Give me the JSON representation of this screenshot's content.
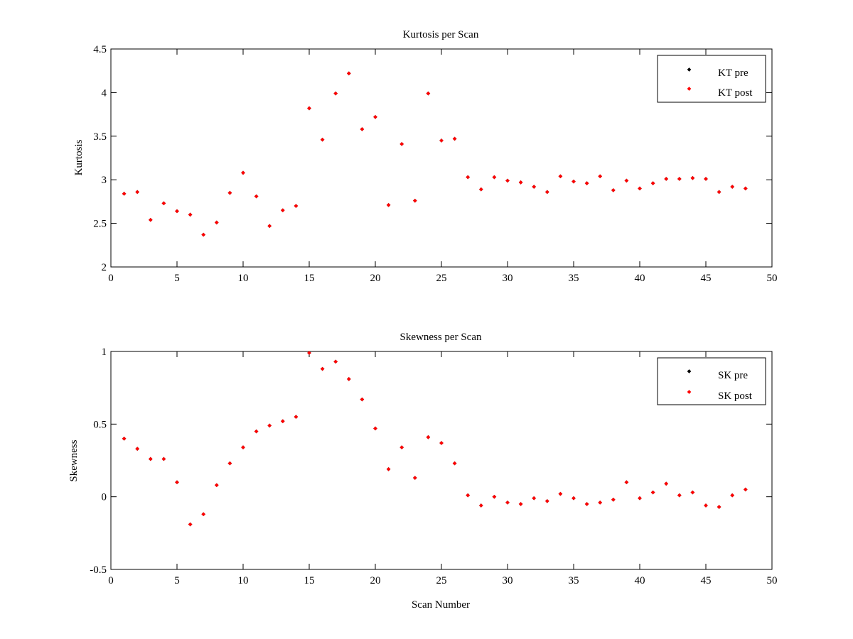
{
  "colors": {
    "pre": "#000000",
    "post": "#ff0000",
    "axes": "#000000",
    "background": "#ffffff"
  },
  "chart_data": [
    {
      "type": "scatter",
      "title": "Kurtosis per Scan",
      "xlabel": "",
      "ylabel": "Kurtosis",
      "xlim": [
        0,
        50
      ],
      "ylim": [
        2,
        4.5
      ],
      "xticks": [
        0,
        5,
        10,
        15,
        20,
        25,
        30,
        35,
        40,
        45,
        50
      ],
      "yticks": [
        2,
        2.5,
        3,
        3.5,
        4,
        4.5
      ],
      "grid": false,
      "legend_position": "top-right",
      "x": [
        1,
        2,
        3,
        4,
        5,
        6,
        7,
        8,
        9,
        10,
        11,
        12,
        13,
        14,
        15,
        16,
        17,
        18,
        19,
        20,
        21,
        22,
        23,
        24,
        25,
        26,
        27,
        28,
        29,
        30,
        31,
        32,
        33,
        34,
        35,
        36,
        37,
        38,
        39,
        40,
        41,
        42,
        43,
        44,
        45,
        46,
        47,
        48
      ],
      "series": [
        {
          "name": "KT pre",
          "color": "#000000",
          "values": [
            2.84,
            2.86,
            2.54,
            2.73,
            2.64,
            2.6,
            2.37,
            2.51,
            2.85,
            3.08,
            2.81,
            2.47,
            2.65,
            2.7,
            3.82,
            3.46,
            3.99,
            4.22,
            3.58,
            3.72,
            2.71,
            3.41,
            2.76,
            3.99,
            3.45,
            3.47,
            3.03,
            2.89,
            3.03,
            2.99,
            2.97,
            2.92,
            2.86,
            3.04,
            2.98,
            2.96,
            3.04,
            2.88,
            2.99,
            2.9,
            2.96,
            3.01,
            3.01,
            3.02,
            3.01,
            2.86,
            2.92,
            2.9
          ]
        },
        {
          "name": "KT post",
          "color": "#ff0000",
          "values": [
            2.84,
            2.86,
            2.54,
            2.73,
            2.64,
            2.6,
            2.37,
            2.51,
            2.85,
            3.08,
            2.81,
            2.47,
            2.65,
            2.7,
            3.82,
            3.46,
            3.99,
            4.22,
            3.58,
            3.72,
            2.71,
            3.41,
            2.76,
            3.99,
            3.45,
            3.47,
            3.03,
            2.89,
            3.03,
            2.99,
            2.97,
            2.92,
            2.86,
            3.04,
            2.98,
            2.96,
            3.04,
            2.88,
            2.99,
            2.9,
            2.96,
            3.01,
            3.01,
            3.02,
            3.01,
            2.86,
            2.92,
            2.9
          ]
        }
      ]
    },
    {
      "type": "scatter",
      "title": "Skewness per Scan",
      "xlabel": "Scan Number",
      "ylabel": "Skewness",
      "xlim": [
        0,
        50
      ],
      "ylim": [
        -0.5,
        1
      ],
      "xticks": [
        0,
        5,
        10,
        15,
        20,
        25,
        30,
        35,
        40,
        45,
        50
      ],
      "yticks": [
        -0.5,
        0,
        0.5,
        1
      ],
      "grid": false,
      "legend_position": "top-right",
      "x": [
        1,
        2,
        3,
        4,
        5,
        6,
        7,
        8,
        9,
        10,
        11,
        12,
        13,
        14,
        15,
        16,
        17,
        18,
        19,
        20,
        21,
        22,
        23,
        24,
        25,
        26,
        27,
        28,
        29,
        30,
        31,
        32,
        33,
        34,
        35,
        36,
        37,
        38,
        39,
        40,
        41,
        42,
        43,
        44,
        45,
        46,
        47,
        48
      ],
      "series": [
        {
          "name": "SK pre",
          "color": "#000000",
          "values": [
            0.4,
            0.33,
            0.26,
            0.26,
            0.1,
            -0.19,
            -0.12,
            0.08,
            0.23,
            0.34,
            0.45,
            0.49,
            0.52,
            0.55,
            0.99,
            0.88,
            0.93,
            0.81,
            0.67,
            0.47,
            0.19,
            0.34,
            0.13,
            0.41,
            0.37,
            0.23,
            0.01,
            -0.06,
            0.0,
            -0.04,
            -0.05,
            -0.01,
            -0.03,
            0.02,
            -0.01,
            -0.05,
            -0.04,
            -0.02,
            0.1,
            -0.01,
            0.03,
            0.09,
            0.01,
            0.03,
            -0.06,
            -0.07,
            0.01,
            0.05
          ]
        },
        {
          "name": "SK post",
          "color": "#ff0000",
          "values": [
            0.4,
            0.33,
            0.26,
            0.26,
            0.1,
            -0.19,
            -0.12,
            0.08,
            0.23,
            0.34,
            0.45,
            0.49,
            0.52,
            0.55,
            0.99,
            0.88,
            0.93,
            0.81,
            0.67,
            0.47,
            0.19,
            0.34,
            0.13,
            0.41,
            0.37,
            0.23,
            0.01,
            -0.06,
            0.0,
            -0.04,
            -0.05,
            -0.01,
            -0.03,
            0.02,
            -0.01,
            -0.05,
            -0.04,
            -0.02,
            0.1,
            -0.01,
            0.03,
            0.09,
            0.01,
            0.03,
            -0.06,
            -0.07,
            0.01,
            0.05
          ]
        }
      ]
    }
  ]
}
